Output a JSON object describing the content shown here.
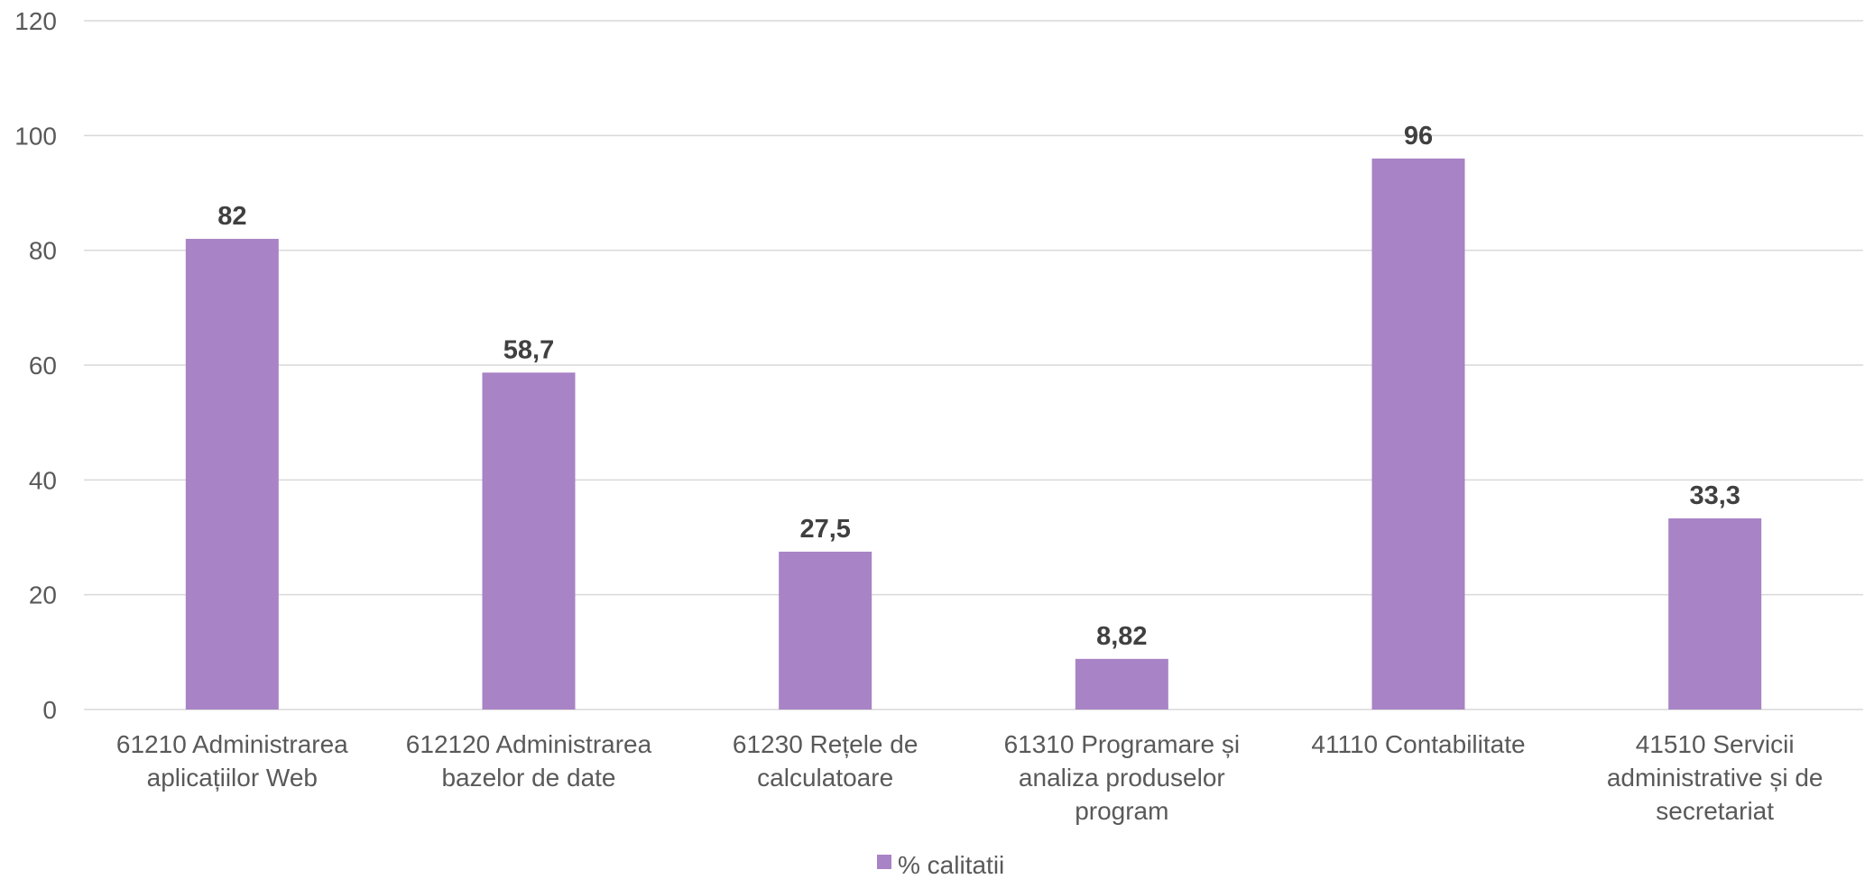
{
  "chart_data": {
    "type": "bar",
    "categories": [
      [
        "61210 Administrarea",
        "aplicațiilor Web"
      ],
      [
        "612120 Administrarea",
        "bazelor de date"
      ],
      [
        "61230 Rețele de",
        "calculatoare"
      ],
      [
        "61310 Programare și",
        "analiza produselor",
        "program"
      ],
      [
        "41110 Contabilitate"
      ],
      [
        "41510 Servicii",
        "administrative și de",
        "secretariat"
      ]
    ],
    "series": [
      {
        "name": "% calitatii",
        "values": [
          82,
          58.7,
          27.5,
          8.82,
          96,
          33.3
        ],
        "value_labels": [
          "82",
          "58,7",
          "27,5",
          "8,82",
          "96",
          "33,3"
        ],
        "color": "#a883c5"
      }
    ],
    "ylim": [
      0,
      120
    ],
    "yticks": [
      0,
      20,
      40,
      60,
      80,
      100,
      120
    ],
    "grid": true,
    "gridline_color": "#d9d9d9",
    "axis_text_color": "#595959",
    "data_label_color": "#404040",
    "legend_position": "bottom-center"
  }
}
